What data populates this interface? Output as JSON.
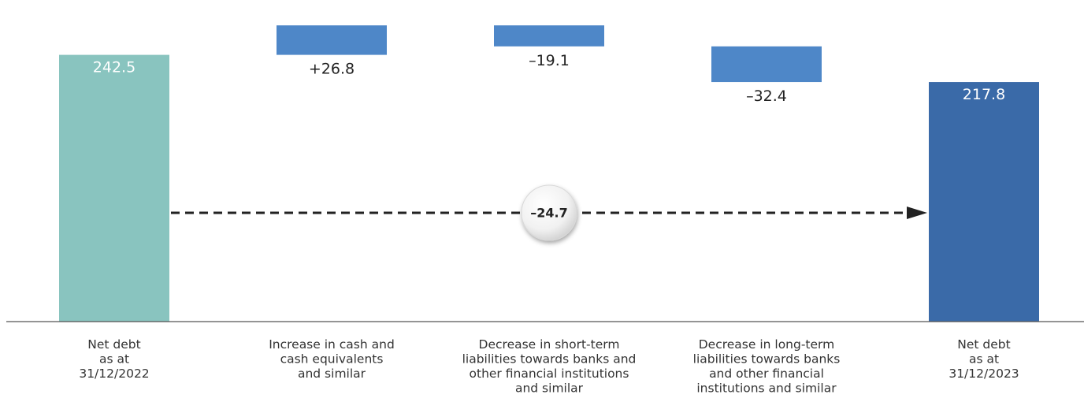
{
  "chart_data": {
    "type": "waterfall",
    "categories": [
      [
        "Net debt",
        "as at",
        "31/12/2022"
      ],
      [
        "Increase in cash and",
        "cash equivalents",
        "and similar"
      ],
      [
        "Decrease in short-term",
        "liabilities towards banks and",
        "other financial institutions",
        "and similar"
      ],
      [
        "Decrease in long-term",
        "liabilities towards banks",
        "and other financial",
        "institutions and similar"
      ],
      [
        "Net debt",
        "as at",
        "31/12/2023"
      ]
    ],
    "bars": [
      {
        "kind": "total",
        "value": 242.5,
        "label": "242.5",
        "color": "#89c4bf"
      },
      {
        "kind": "change",
        "value": 26.8,
        "label": "+26.8",
        "color": "#4e87c8"
      },
      {
        "kind": "change",
        "value": -19.1,
        "label": "–19.1",
        "color": "#4e87c8"
      },
      {
        "kind": "change",
        "value": -32.4,
        "label": "–32.4",
        "color": "#4e87c8"
      },
      {
        "kind": "total",
        "value": 217.8,
        "label": "217.8",
        "color": "#3a6aa8"
      }
    ],
    "total_change": {
      "value": -24.7,
      "label": "–24.7"
    },
    "colors": {
      "axis": "#555555",
      "arrow": "#222222",
      "inside_label": "#ffffff",
      "outside_label": "#222222"
    }
  }
}
